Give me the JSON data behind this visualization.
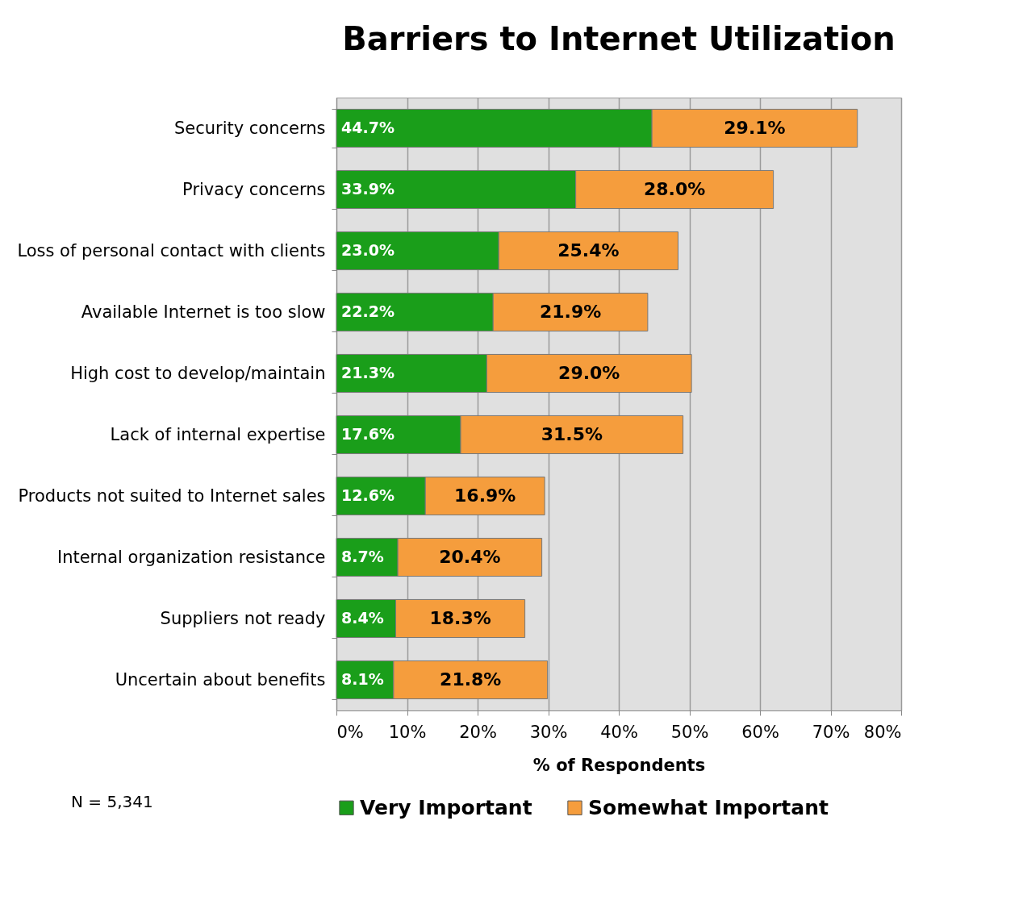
{
  "chart_data": {
    "type": "bar",
    "orientation": "horizontal",
    "stacked": true,
    "title": "Barriers to Internet Utilization",
    "xlabel": "% of Respondents",
    "categories": [
      "Security concerns",
      "Privacy concerns",
      "Loss of personal contact with clients",
      "Available Internet is too slow",
      "High cost to develop/maintain",
      "Lack of internal expertise",
      "Products not suited to Internet sales",
      "Internal organization resistance",
      "Suppliers not ready",
      "Uncertain about benefits"
    ],
    "series": [
      {
        "name": "Very Important",
        "color": "#1a9e1a",
        "values": [
          44.7,
          33.9,
          23.0,
          22.2,
          21.3,
          17.6,
          12.6,
          8.7,
          8.4,
          8.1
        ],
        "value_labels": [
          "44.7%",
          "33.9%",
          "23.0%",
          "22.2%",
          "21.3%",
          "17.6%",
          "12.6%",
          "8.7%",
          "8.4%",
          "8.1%"
        ]
      },
      {
        "name": "Somewhat Important",
        "color": "#f59d3d",
        "values": [
          29.1,
          28.0,
          25.4,
          21.9,
          29.0,
          31.5,
          16.9,
          20.4,
          18.3,
          21.8
        ],
        "value_labels": [
          "29.1%",
          "28.0%",
          "25.4%",
          "21.9%",
          "29.0%",
          "31.5%",
          "16.9%",
          "20.4%",
          "18.3%",
          "21.8%"
        ]
      }
    ],
    "xlim": [
      0,
      80
    ],
    "xticks": [
      {
        "value": 0,
        "label": "0%"
      },
      {
        "value": 10,
        "label": "10%"
      },
      {
        "value": 20,
        "label": "20%"
      },
      {
        "value": 30,
        "label": "30%"
      },
      {
        "value": 40,
        "label": "40%"
      },
      {
        "value": 50,
        "label": "50%"
      },
      {
        "value": 60,
        "label": "60%"
      },
      {
        "value": 70,
        "label": "70%"
      },
      {
        "value": 80,
        "label": "80%"
      }
    ],
    "grid": "x",
    "legend": "bottom",
    "annotations": [
      "N = 5,341"
    ]
  }
}
